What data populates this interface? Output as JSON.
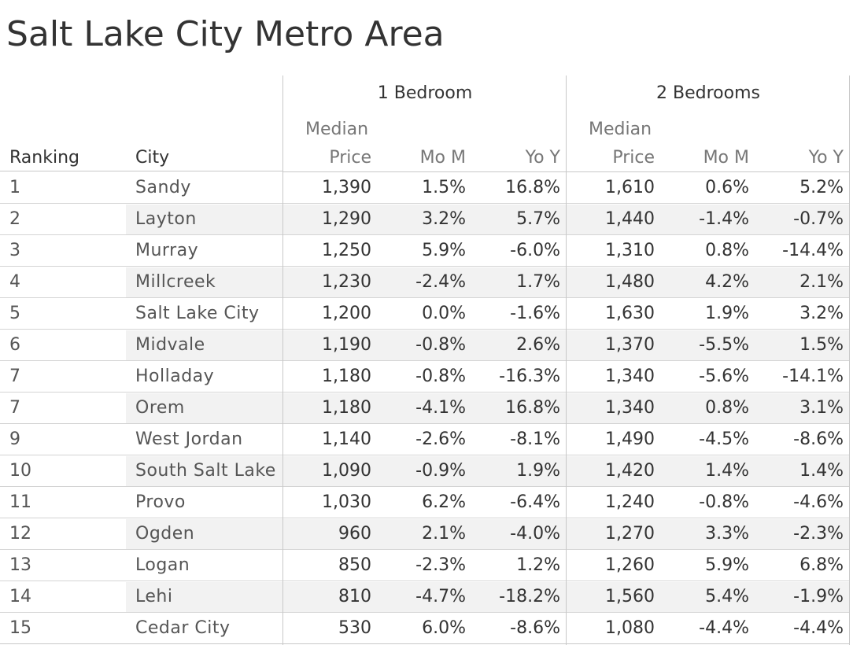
{
  "title": "Salt Lake City Metro Area",
  "chart_data": {
    "type": "table",
    "title": "Salt Lake City Metro Area",
    "column_groups": [
      {
        "name": "1 Bedroom",
        "columns": [
          "Median Price",
          "Mo M",
          "Yo Y"
        ]
      },
      {
        "name": "2 Bedrooms",
        "columns": [
          "Median Price",
          "Mo M",
          "Yo Y"
        ]
      }
    ],
    "row_headers": [
      "Ranking",
      "City"
    ],
    "header_labels": {
      "ranking": "Ranking",
      "city": "City",
      "median_top": "Median",
      "median_bottom": "Price",
      "mom": "Mo M",
      "yoy": "Yo Y",
      "group1": "1 Bedroom",
      "group2": "2 Bedrooms"
    },
    "rows": [
      {
        "rank": "1",
        "city": "Sandy",
        "b1_price": "1,390",
        "b1_mom": "1.5%",
        "b1_yoy": "16.8%",
        "b2_price": "1,610",
        "b2_mom": "0.6%",
        "b2_yoy": "5.2%"
      },
      {
        "rank": "2",
        "city": "Layton",
        "b1_price": "1,290",
        "b1_mom": "3.2%",
        "b1_yoy": "5.7%",
        "b2_price": "1,440",
        "b2_mom": "-1.4%",
        "b2_yoy": "-0.7%"
      },
      {
        "rank": "3",
        "city": "Murray",
        "b1_price": "1,250",
        "b1_mom": "5.9%",
        "b1_yoy": "-6.0%",
        "b2_price": "1,310",
        "b2_mom": "0.8%",
        "b2_yoy": "-14.4%"
      },
      {
        "rank": "4",
        "city": "Millcreek",
        "b1_price": "1,230",
        "b1_mom": "-2.4%",
        "b1_yoy": "1.7%",
        "b2_price": "1,480",
        "b2_mom": "4.2%",
        "b2_yoy": "2.1%"
      },
      {
        "rank": "5",
        "city": "Salt Lake City",
        "b1_price": "1,200",
        "b1_mom": "0.0%",
        "b1_yoy": "-1.6%",
        "b2_price": "1,630",
        "b2_mom": "1.9%",
        "b2_yoy": "3.2%"
      },
      {
        "rank": "6",
        "city": "Midvale",
        "b1_price": "1,190",
        "b1_mom": "-0.8%",
        "b1_yoy": "2.6%",
        "b2_price": "1,370",
        "b2_mom": "-5.5%",
        "b2_yoy": "1.5%"
      },
      {
        "rank": "7",
        "city": "Holladay",
        "b1_price": "1,180",
        "b1_mom": "-0.8%",
        "b1_yoy": "-16.3%",
        "b2_price": "1,340",
        "b2_mom": "-5.6%",
        "b2_yoy": "-14.1%"
      },
      {
        "rank": "7",
        "city": "Orem",
        "b1_price": "1,180",
        "b1_mom": "-4.1%",
        "b1_yoy": "16.8%",
        "b2_price": "1,340",
        "b2_mom": "0.8%",
        "b2_yoy": "3.1%"
      },
      {
        "rank": "9",
        "city": "West Jordan",
        "b1_price": "1,140",
        "b1_mom": "-2.6%",
        "b1_yoy": "-8.1%",
        "b2_price": "1,490",
        "b2_mom": "-4.5%",
        "b2_yoy": "-8.6%"
      },
      {
        "rank": "10",
        "city": "South Salt Lake",
        "b1_price": "1,090",
        "b1_mom": "-0.9%",
        "b1_yoy": "1.9%",
        "b2_price": "1,420",
        "b2_mom": "1.4%",
        "b2_yoy": "1.4%"
      },
      {
        "rank": "11",
        "city": "Provo",
        "b1_price": "1,030",
        "b1_mom": "6.2%",
        "b1_yoy": "-6.4%",
        "b2_price": "1,240",
        "b2_mom": "-0.8%",
        "b2_yoy": "-4.6%"
      },
      {
        "rank": "12",
        "city": "Ogden",
        "b1_price": "960",
        "b1_mom": "2.1%",
        "b1_yoy": "-4.0%",
        "b2_price": "1,270",
        "b2_mom": "3.3%",
        "b2_yoy": "-2.3%"
      },
      {
        "rank": "13",
        "city": "Logan",
        "b1_price": "850",
        "b1_mom": "-2.3%",
        "b1_yoy": "1.2%",
        "b2_price": "1,260",
        "b2_mom": "5.9%",
        "b2_yoy": "6.8%"
      },
      {
        "rank": "14",
        "city": "Lehi",
        "b1_price": "810",
        "b1_mom": "-4.7%",
        "b1_yoy": "-18.2%",
        "b2_price": "1,560",
        "b2_mom": "5.4%",
        "b2_yoy": "-1.9%"
      },
      {
        "rank": "15",
        "city": "Cedar City",
        "b1_price": "530",
        "b1_mom": "6.0%",
        "b1_yoy": "-8.6%",
        "b2_price": "1,080",
        "b2_mom": "-4.4%",
        "b2_yoy": "-4.4%"
      }
    ]
  }
}
